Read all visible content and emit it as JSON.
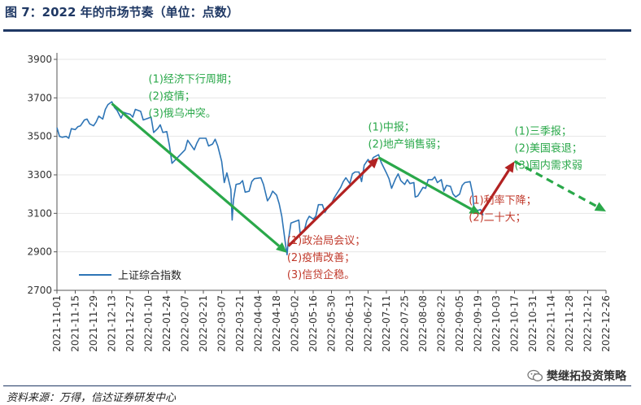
{
  "title": "图 7：2022 年的市场节奏（单位：点数）",
  "source": "资料来源：万得，信达证券研发中心",
  "watermark": "樊继拓投资策略",
  "colors": {
    "title": "#1f3864",
    "line": "#2e75b6",
    "green": "#2aa84a",
    "red": "#b22222",
    "annGreen": "#2aa84a",
    "annRed": "#c0392b"
  },
  "chart_data": {
    "type": "line",
    "title": "",
    "xlabel": "",
    "ylabel": "",
    "ylim": [
      2700,
      3900
    ],
    "yticks": [
      2700,
      2900,
      3100,
      3300,
      3500,
      3700,
      3900
    ],
    "xticks": [
      "2021-11-01",
      "2021-11-15",
      "2021-11-29",
      "2021-12-13",
      "2021-12-27",
      "2022-01-10",
      "2022-01-24",
      "2022-02-07",
      "2022-02-21",
      "2022-03-07",
      "2022-03-21",
      "2022-04-04",
      "2022-04-18",
      "2022-05-02",
      "2022-05-16",
      "2022-05-30",
      "2022-06-13",
      "2022-06-27",
      "2022-07-11",
      "2022-07-25",
      "2022-08-08",
      "2022-08-22",
      "2022-09-05",
      "2022-09-19",
      "2022-10-03",
      "2022-10-17",
      "2022-10-31",
      "2022-11-14",
      "2022-11-28",
      "2022-12-12",
      "2022-12-26"
    ],
    "legend": {
      "position": "bottom-left",
      "entries": [
        "上证综合指数"
      ]
    },
    "series": [
      {
        "name": "上证综合指数",
        "points": [
          [
            "2021-11-01",
            3545
          ],
          [
            "2021-11-03",
            3500
          ],
          [
            "2021-11-05",
            3495
          ],
          [
            "2021-11-08",
            3500
          ],
          [
            "2021-11-10",
            3490
          ],
          [
            "2021-11-12",
            3540
          ],
          [
            "2021-11-15",
            3535
          ],
          [
            "2021-11-17",
            3550
          ],
          [
            "2021-11-19",
            3555
          ],
          [
            "2021-11-22",
            3585
          ],
          [
            "2021-11-24",
            3590
          ],
          [
            "2021-11-26",
            3565
          ],
          [
            "2021-11-29",
            3555
          ],
          [
            "2021-12-01",
            3575
          ],
          [
            "2021-12-03",
            3605
          ],
          [
            "2021-12-06",
            3590
          ],
          [
            "2021-12-08",
            3640
          ],
          [
            "2021-12-10",
            3665
          ],
          [
            "2021-12-13",
            3680
          ],
          [
            "2021-12-15",
            3650
          ],
          [
            "2021-12-17",
            3635
          ],
          [
            "2021-12-20",
            3595
          ],
          [
            "2021-12-22",
            3625
          ],
          [
            "2021-12-24",
            3620
          ],
          [
            "2021-12-27",
            3615
          ],
          [
            "2021-12-29",
            3600
          ],
          [
            "2021-12-31",
            3640
          ],
          [
            "2022-01-04",
            3630
          ],
          [
            "2022-01-06",
            3585
          ],
          [
            "2022-01-10",
            3595
          ],
          [
            "2022-01-12",
            3600
          ],
          [
            "2022-01-14",
            3520
          ],
          [
            "2022-01-17",
            3540
          ],
          [
            "2022-01-19",
            3560
          ],
          [
            "2022-01-21",
            3520
          ],
          [
            "2022-01-24",
            3525
          ],
          [
            "2022-01-26",
            3455
          ],
          [
            "2022-01-28",
            3360
          ],
          [
            "2022-02-07",
            3430
          ],
          [
            "2022-02-09",
            3480
          ],
          [
            "2022-02-11",
            3460
          ],
          [
            "2022-02-14",
            3430
          ],
          [
            "2022-02-16",
            3465
          ],
          [
            "2022-02-18",
            3490
          ],
          [
            "2022-02-21",
            3490
          ],
          [
            "2022-02-23",
            3490
          ],
          [
            "2022-02-25",
            3450
          ],
          [
            "2022-02-28",
            3460
          ],
          [
            "2022-03-02",
            3485
          ],
          [
            "2022-03-04",
            3450
          ],
          [
            "2022-03-07",
            3370
          ],
          [
            "2022-03-09",
            3260
          ],
          [
            "2022-03-11",
            3310
          ],
          [
            "2022-03-14",
            3225
          ],
          [
            "2022-03-15",
            3065
          ],
          [
            "2022-03-16",
            3170
          ],
          [
            "2022-03-18",
            3250
          ],
          [
            "2022-03-21",
            3255
          ],
          [
            "2022-03-23",
            3270
          ],
          [
            "2022-03-25",
            3210
          ],
          [
            "2022-03-28",
            3215
          ],
          [
            "2022-03-30",
            3265
          ],
          [
            "2022-04-01",
            3280
          ],
          [
            "2022-04-06",
            3285
          ],
          [
            "2022-04-08",
            3250
          ],
          [
            "2022-04-11",
            3165
          ],
          [
            "2022-04-13",
            3185
          ],
          [
            "2022-04-15",
            3215
          ],
          [
            "2022-04-18",
            3195
          ],
          [
            "2022-04-20",
            3150
          ],
          [
            "2022-04-22",
            3085
          ],
          [
            "2022-04-25",
            2930
          ],
          [
            "2022-04-26",
            2885
          ],
          [
            "2022-04-27",
            2960
          ],
          [
            "2022-04-29",
            3050
          ],
          [
            "2022-05-05",
            3065
          ],
          [
            "2022-05-06",
            3000
          ],
          [
            "2022-05-09",
            3005
          ],
          [
            "2022-05-11",
            3060
          ],
          [
            "2022-05-13",
            3085
          ],
          [
            "2022-05-16",
            3070
          ],
          [
            "2022-05-18",
            3085
          ],
          [
            "2022-05-20",
            3145
          ],
          [
            "2022-05-23",
            3145
          ],
          [
            "2022-05-25",
            3105
          ],
          [
            "2022-05-27",
            3130
          ],
          [
            "2022-05-30",
            3150
          ],
          [
            "2022-06-01",
            3180
          ],
          [
            "2022-06-06",
            3235
          ],
          [
            "2022-06-08",
            3265
          ],
          [
            "2022-06-10",
            3285
          ],
          [
            "2022-06-13",
            3255
          ],
          [
            "2022-06-15",
            3305
          ],
          [
            "2022-06-17",
            3315
          ],
          [
            "2022-06-20",
            3315
          ],
          [
            "2022-06-22",
            3265
          ],
          [
            "2022-06-24",
            3350
          ],
          [
            "2022-06-27",
            3380
          ],
          [
            "2022-06-29",
            3360
          ],
          [
            "2022-07-01",
            3390
          ],
          [
            "2022-07-05",
            3405
          ],
          [
            "2022-07-07",
            3365
          ],
          [
            "2022-07-11",
            3310
          ],
          [
            "2022-07-13",
            3280
          ],
          [
            "2022-07-15",
            3230
          ],
          [
            "2022-07-18",
            3280
          ],
          [
            "2022-07-20",
            3305
          ],
          [
            "2022-07-22",
            3270
          ],
          [
            "2022-07-25",
            3250
          ],
          [
            "2022-07-27",
            3275
          ],
          [
            "2022-07-29",
            3255
          ],
          [
            "2022-08-01",
            3260
          ],
          [
            "2022-08-02",
            3185
          ],
          [
            "2022-08-04",
            3190
          ],
          [
            "2022-08-08",
            3235
          ],
          [
            "2022-08-10",
            3230
          ],
          [
            "2022-08-12",
            3275
          ],
          [
            "2022-08-15",
            3275
          ],
          [
            "2022-08-17",
            3290
          ],
          [
            "2022-08-19",
            3260
          ],
          [
            "2022-08-22",
            3275
          ],
          [
            "2022-08-24",
            3215
          ],
          [
            "2022-08-26",
            3245
          ],
          [
            "2022-08-29",
            3240
          ],
          [
            "2022-08-31",
            3200
          ],
          [
            "2022-09-02",
            3185
          ],
          [
            "2022-09-05",
            3200
          ],
          [
            "2022-09-07",
            3245
          ],
          [
            "2022-09-09",
            3260
          ],
          [
            "2022-09-13",
            3265
          ],
          [
            "2022-09-15",
            3200
          ],
          [
            "2022-09-16",
            3125
          ],
          [
            "2022-09-19",
            3115
          ],
          [
            "2022-09-21",
            3120
          ],
          [
            "2022-09-23",
            3090
          ]
        ]
      }
    ],
    "trend_arrows": [
      {
        "color": "green",
        "style": "solid",
        "from": [
          "2021-12-13",
          3670
        ],
        "to": [
          "2022-04-26",
          2895
        ]
      },
      {
        "color": "red",
        "style": "solid",
        "from": [
          "2022-04-27",
          2930
        ],
        "to": [
          "2022-07-05",
          3390
        ]
      },
      {
        "color": "green",
        "style": "solid",
        "from": [
          "2022-07-05",
          3390
        ],
        "to": [
          "2022-09-21",
          3095
        ]
      },
      {
        "color": "red",
        "style": "solid",
        "from": [
          "2022-09-21",
          3095
        ],
        "to": [
          "2022-10-17",
          3370
        ]
      },
      {
        "color": "green",
        "style": "dashed",
        "from": [
          "2022-10-17",
          3370
        ],
        "to": [
          "2022-12-26",
          3110
        ]
      }
    ],
    "annotations": [
      {
        "color": "green",
        "anchor": [
          "2022-01-10",
          3780
        ],
        "lines": [
          "(1)经济下行周期；",
          "(2)疫情；",
          "(3)俄乌冲突。"
        ]
      },
      {
        "color": "red",
        "anchor": [
          "2022-04-26",
          2940
        ],
        "lines": [
          "(1)政治局会议；",
          "(2)疫情改善；",
          "(3)信贷企稳。"
        ]
      },
      {
        "color": "green",
        "anchor": [
          "2022-06-27",
          3530
        ],
        "lines": [
          "(1)中报；",
          "(2)地产销售弱；"
        ]
      },
      {
        "color": "red",
        "anchor": [
          "2022-09-12",
          3150
        ],
        "lines": [
          "(1)利率下降；",
          "(2)二十大；"
        ]
      },
      {
        "color": "green",
        "anchor": [
          "2022-10-17",
          3510
        ],
        "lines": [
          "(1)三季报；",
          "(2)美国衰退；",
          "(3)国内需求弱"
        ]
      }
    ]
  }
}
